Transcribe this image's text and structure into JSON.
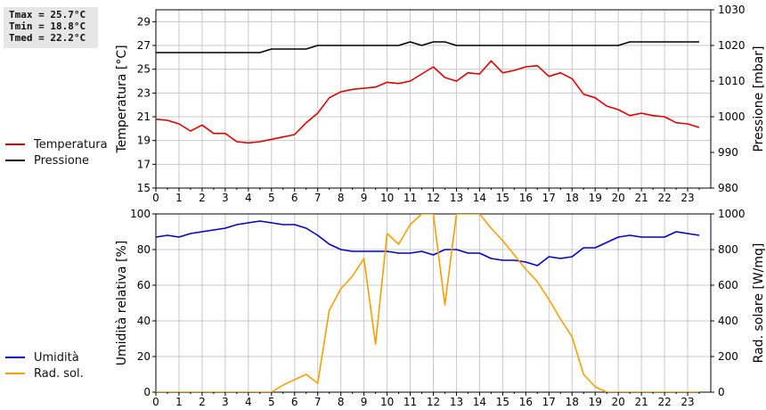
{
  "stats": {
    "tmax": "Tmax = 25.7°C",
    "tmin": "Tmin = 18.8°C",
    "tmed": "Tmed = 22.2°C"
  },
  "colors": {
    "temperatura": "#dd0000",
    "pressione": "#000000",
    "umidita": "#0000cc",
    "radiazione": "#f5a000",
    "grid": "#c8c8c8"
  },
  "chart_data": [
    {
      "type": "line",
      "xlabel": "",
      "xlim": [
        0,
        24
      ],
      "xticks": [
        "0",
        "1",
        "2",
        "3",
        "4",
        "5",
        "6",
        "7",
        "8",
        "9",
        "10",
        "11",
        "12",
        "13",
        "14",
        "15",
        "16",
        "17",
        "18",
        "19",
        "20",
        "21",
        "22",
        "23"
      ],
      "ylabel": "Temperatura [°C]",
      "ylim": [
        15,
        30
      ],
      "yticks": [
        "15",
        "17",
        "19",
        "21",
        "23",
        "25",
        "27",
        "29"
      ],
      "y2label": "Pressione [mbar]",
      "y2lim": [
        980,
        1030
      ],
      "y2ticks": [
        "980",
        "990",
        "1000",
        "1010",
        "1020",
        "1030"
      ],
      "grid": true,
      "legend": "left",
      "series": [
        {
          "name": "Temperatura",
          "axis": "left",
          "x": [
            0,
            0.5,
            1,
            1.5,
            2,
            2.5,
            3,
            3.5,
            4,
            4.5,
            5,
            5.5,
            6,
            6.5,
            7,
            7.5,
            8,
            8.5,
            9,
            9.5,
            10,
            10.5,
            11,
            11.5,
            12,
            12.5,
            13,
            13.5,
            14,
            14.5,
            15,
            15.5,
            16,
            16.5,
            17,
            17.5,
            18,
            18.5,
            19,
            19.5,
            20,
            20.5,
            21,
            21.5,
            22,
            22.5,
            23,
            23.5
          ],
          "y": [
            20.8,
            20.7,
            20.4,
            19.8,
            20.3,
            19.6,
            19.6,
            18.9,
            18.8,
            18.9,
            19.1,
            19.3,
            19.5,
            20.5,
            21.3,
            22.6,
            23.1,
            23.3,
            23.4,
            23.5,
            23.9,
            23.8,
            24.0,
            24.6,
            25.2,
            24.3,
            24.0,
            24.7,
            24.6,
            25.7,
            24.7,
            24.9,
            25.2,
            25.3,
            24.4,
            24.7,
            24.2,
            22.9,
            22.6,
            21.9,
            21.6,
            21.1,
            21.3,
            21.1,
            21.0,
            20.5,
            20.4,
            20.1
          ]
        },
        {
          "name": "Pressione",
          "axis": "right",
          "x": [
            0,
            1,
            2,
            3,
            4,
            4.5,
            5,
            6,
            6.5,
            7,
            8,
            9,
            10,
            10.5,
            11,
            11.5,
            12,
            12.5,
            13,
            14,
            15,
            16,
            17,
            18,
            19,
            20,
            20.5,
            21,
            22,
            23,
            23.5
          ],
          "y": [
            1018,
            1018,
            1018,
            1018,
            1018,
            1018,
            1019,
            1019,
            1019,
            1020,
            1020,
            1020,
            1020,
            1020,
            1021,
            1020,
            1021,
            1021,
            1020,
            1020,
            1020,
            1020,
            1020,
            1020,
            1020,
            1020,
            1021,
            1021,
            1021,
            1021,
            1021
          ]
        }
      ]
    },
    {
      "type": "line",
      "xlabel": "",
      "xlim": [
        0,
        24
      ],
      "xticks": [
        "0",
        "1",
        "2",
        "3",
        "4",
        "5",
        "6",
        "7",
        "8",
        "9",
        "10",
        "11",
        "12",
        "13",
        "14",
        "15",
        "16",
        "17",
        "18",
        "19",
        "20",
        "21",
        "22",
        "23"
      ],
      "ylabel": "Umidità relativa [%]",
      "ylim": [
        0,
        100
      ],
      "yticks": [
        "0",
        "20",
        "40",
        "60",
        "80",
        "100"
      ],
      "y2label": "Rad. solare [W/mq]",
      "y2lim": [
        0,
        1000
      ],
      "y2ticks": [
        "0",
        "200",
        "400",
        "600",
        "800",
        "1000"
      ],
      "grid": true,
      "legend": "left",
      "series": [
        {
          "name": "Umidità",
          "axis": "left",
          "x": [
            0,
            0.5,
            1,
            1.5,
            2,
            2.5,
            3,
            3.5,
            4,
            4.5,
            5,
            5.5,
            6,
            6.5,
            7,
            7.5,
            8,
            8.5,
            9,
            9.5,
            10,
            10.5,
            11,
            11.5,
            12,
            12.5,
            13,
            13.5,
            14,
            14.5,
            15,
            15.5,
            16,
            16.5,
            17,
            17.5,
            18,
            18.5,
            19,
            19.5,
            20,
            20.5,
            21,
            21.5,
            22,
            22.5,
            23,
            23.5
          ],
          "y": [
            87,
            88,
            87,
            89,
            90,
            91,
            92,
            94,
            95,
            96,
            95,
            94,
            94,
            92,
            88,
            83,
            80,
            79,
            79,
            79,
            79,
            78,
            78,
            79,
            77,
            80,
            80,
            78,
            78,
            75,
            74,
            74,
            73,
            71,
            76,
            75,
            76,
            81,
            81,
            84,
            87,
            88,
            87,
            87,
            87,
            90,
            89,
            88
          ]
        },
        {
          "name": "Rad. sol.",
          "axis": "right",
          "x": [
            0,
            1,
            2,
            3,
            4,
            5,
            5.5,
            6,
            6.5,
            7,
            7.5,
            8,
            8.5,
            9,
            9.5,
            10,
            10.5,
            11,
            11.5,
            12,
            12.5,
            13,
            13.5,
            14,
            14.5,
            15,
            15.5,
            16,
            16.5,
            17,
            17.5,
            18,
            18.5,
            19,
            19.5,
            20,
            21,
            22,
            23,
            23.5
          ],
          "y": [
            0,
            0,
            0,
            0,
            0,
            0,
            40,
            70,
            100,
            50,
            460,
            580,
            650,
            750,
            270,
            890,
            830,
            940,
            1000,
            1000,
            490,
            1000,
            1000,
            1000,
            920,
            850,
            770,
            690,
            620,
            520,
            410,
            310,
            100,
            30,
            0,
            0,
            0,
            0,
            0,
            0
          ]
        }
      ]
    }
  ]
}
